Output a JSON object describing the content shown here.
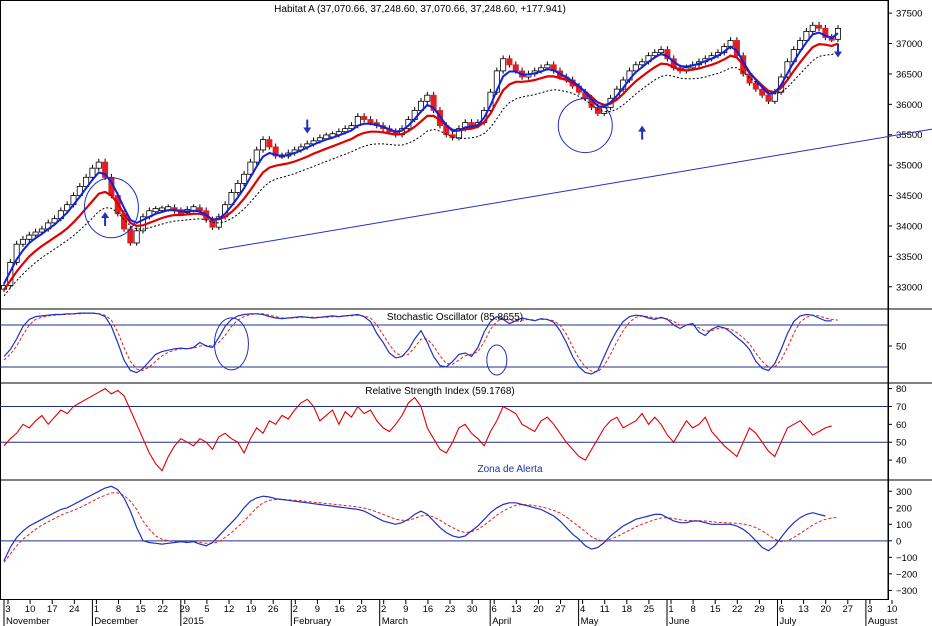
{
  "chart_data": [
    {
      "type": "candlestick",
      "title": "Habitat A (37,070.66, 37,248.60, 37,070.66, 37,248.60, +177.941)",
      "yticks": [
        33000,
        33500,
        34000,
        34500,
        35000,
        35500,
        36000,
        36500,
        37000,
        37500
      ],
      "ylim": [
        32700,
        37650
      ],
      "annotations": {
        "trendline": [
          [
            34,
            33610
          ],
          [
            210,
            36700
          ]
        ],
        "up_arrows": [
          16,
          101
        ],
        "down_arrows": [
          48,
          132
        ]
      },
      "close_series": [
        33020,
        33400,
        33700,
        33780,
        33850,
        33900,
        33950,
        34050,
        34120,
        34250,
        34350,
        34500,
        34650,
        34800,
        34950,
        35050,
        34800,
        34500,
        34200,
        33950,
        33720,
        33920,
        34150,
        34250,
        34270,
        34280,
        34300,
        34250,
        34220,
        34270,
        34300,
        34250,
        34100,
        33980,
        34150,
        34350,
        34550,
        34700,
        34850,
        35050,
        35250,
        35420,
        35300,
        35150,
        35150,
        35200,
        35250,
        35300,
        35350,
        35400,
        35450,
        35480,
        35500,
        35550,
        35600,
        35650,
        35800,
        35750,
        35700,
        35650,
        35600,
        35550,
        35500,
        35600,
        35750,
        35900,
        36050,
        36150,
        35900,
        35650,
        35500,
        35450,
        35600,
        35700,
        35650,
        35700,
        35900,
        36200,
        36550,
        36750,
        36650,
        36550,
        36450,
        36500,
        36550,
        36600,
        36650,
        36550,
        36450,
        36400,
        36300,
        36200,
        36100,
        35950,
        35850,
        35950,
        36100,
        36250,
        36400,
        36550,
        36650,
        36700,
        36800,
        36850,
        36900,
        36750,
        36600,
        36550,
        36600,
        36650,
        36700,
        36750,
        36800,
        36850,
        36950,
        37050,
        36800,
        36500,
        36350,
        36250,
        36150,
        36050,
        36200,
        36450,
        36700,
        36900,
        37050,
        37200,
        37300,
        37250,
        37100,
        37070,
        37248
      ],
      "ma_fast_series": [
        33050,
        33250,
        33450,
        33600,
        33720,
        33800,
        33870,
        33950,
        34020,
        34120,
        34220,
        34350,
        34480,
        34620,
        34760,
        34880,
        34850,
        34720,
        34520,
        34300,
        34100,
        34050,
        34100,
        34150,
        34200,
        34230,
        34260,
        34260,
        34240,
        34240,
        34250,
        34240,
        34180,
        34100,
        34120,
        34200,
        34330,
        34470,
        34620,
        34800,
        34980,
        35140,
        35200,
        35170,
        35150,
        35170,
        35200,
        35240,
        35290,
        35340,
        35380,
        35420,
        35450,
        35490,
        35530,
        35570,
        35650,
        35680,
        35680,
        35660,
        35630,
        35590,
        35550,
        35570,
        35650,
        35760,
        35880,
        35990,
        35940,
        35800,
        35660,
        35560,
        35570,
        35620,
        35630,
        35660,
        35780,
        35980,
        36230,
        36460,
        36540,
        36540,
        36490,
        36490,
        36510,
        36540,
        36580,
        36560,
        36500,
        36450,
        36380,
        36300,
        36200,
        36080,
        35970,
        35960,
        36030,
        36140,
        36270,
        36410,
        36530,
        36610,
        36700,
        36770,
        36830,
        36790,
        36700,
        36630,
        36620,
        36640,
        36670,
        36710,
        36750,
        36800,
        36870,
        36950,
        36880,
        36700,
        36530,
        36400,
        36280,
        36170,
        36190,
        36320,
        36510,
        36700,
        36870,
        37020,
        37150,
        37180,
        37130,
        37090,
        37170
      ],
      "ma_slow_series": [
        32950,
        33100,
        33250,
        33380,
        33500,
        33590,
        33670,
        33740,
        33810,
        33880,
        33960,
        34060,
        34170,
        34290,
        34410,
        34530,
        34560,
        34500,
        34370,
        34200,
        34050,
        34000,
        34010,
        34050,
        34090,
        34130,
        34160,
        34180,
        34180,
        34190,
        34200,
        34200,
        34170,
        34110,
        34110,
        34150,
        34230,
        34330,
        34450,
        34590,
        34740,
        34880,
        34960,
        34990,
        35010,
        35030,
        35060,
        35100,
        35140,
        35190,
        35230,
        35270,
        35310,
        35350,
        35390,
        35430,
        35490,
        35530,
        35550,
        35550,
        35540,
        35520,
        35500,
        35510,
        35560,
        35630,
        35720,
        35810,
        35810,
        35740,
        35650,
        35580,
        35570,
        35590,
        35600,
        35630,
        35710,
        35850,
        36040,
        36230,
        36330,
        36370,
        36370,
        36380,
        36400,
        36430,
        36460,
        36460,
        36430,
        36400,
        36350,
        36290,
        36210,
        36120,
        36030,
        35990,
        36010,
        36080,
        36170,
        36280,
        36380,
        36460,
        36540,
        36610,
        36670,
        36660,
        36610,
        36570,
        36560,
        36570,
        36590,
        36620,
        36650,
        36690,
        36740,
        36800,
        36770,
        36650,
        36520,
        36410,
        36310,
        36220,
        36200,
        36270,
        36400,
        36550,
        36690,
        36820,
        36940,
        36990,
        36980,
        36960,
        37000
      ],
      "ma_dashed_series": [
        32850,
        32980,
        33100,
        33210,
        33310,
        33400,
        33480,
        33550,
        33620,
        33690,
        33760,
        33840,
        33930,
        34030,
        34130,
        34240,
        34300,
        34290,
        34220,
        34110,
        34000,
        33950,
        33950,
        33970,
        34000,
        34030,
        34060,
        34080,
        34090,
        34100,
        34110,
        34120,
        34100,
        34060,
        34050,
        34070,
        34120,
        34190,
        34280,
        34390,
        34510,
        34630,
        34720,
        34770,
        34800,
        34830,
        34860,
        34900,
        34940,
        34980,
        35020,
        35060,
        35100,
        35140,
        35180,
        35220,
        35270,
        35310,
        35340,
        35350,
        35350,
        35340,
        35330,
        35330,
        35360,
        35410,
        35480,
        35560,
        35590,
        35560,
        35510,
        35460,
        35440,
        35440,
        35450,
        35470,
        35520,
        35620,
        35760,
        35920,
        36030,
        36090,
        36120,
        36140,
        36160,
        36190,
        36220,
        36240,
        36230,
        36210,
        36180,
        36130,
        36070,
        35990,
        35920,
        35880,
        35880,
        35920,
        35990,
        36080,
        36170,
        36250,
        36330,
        36400,
        36460,
        36480,
        36460,
        36430,
        36420,
        36420,
        36430,
        36450,
        36480,
        36510,
        36550,
        36600,
        36600,
        36530,
        36440,
        36360,
        36280,
        36200,
        36170,
        36200,
        36280,
        36390,
        36500,
        36610,
        36720,
        36790,
        36810,
        36820,
        36850
      ]
    },
    {
      "type": "line",
      "title": "Stochastic Oscillator (85.8655)",
      "yticks": [
        50
      ],
      "ylim": [
        0,
        100
      ],
      "hlines": [
        20,
        80
      ],
      "k_series": [
        35,
        45,
        60,
        78,
        88,
        92,
        93,
        94,
        95,
        95,
        96,
        96,
        97,
        97,
        97,
        96,
        92,
        78,
        55,
        30,
        15,
        12,
        18,
        28,
        38,
        42,
        44,
        46,
        47,
        46,
        48,
        55,
        50,
        48,
        62,
        78,
        88,
        93,
        95,
        96,
        96,
        95,
        92,
        90,
        89,
        90,
        91,
        92,
        91,
        90,
        91,
        92,
        93,
        92,
        93,
        94,
        95,
        92,
        85,
        68,
        55,
        40,
        33,
        35,
        45,
        60,
        72,
        55,
        35,
        22,
        20,
        28,
        38,
        40,
        35,
        48,
        70,
        85,
        92,
        88,
        82,
        86,
        90,
        88,
        86,
        89,
        88,
        84,
        72,
        55,
        35,
        20,
        12,
        10,
        15,
        35,
        55,
        72,
        85,
        92,
        94,
        93,
        90,
        88,
        91,
        88,
        80,
        75,
        80,
        82,
        70,
        65,
        74,
        78,
        76,
        70,
        62,
        55,
        45,
        28,
        18,
        15,
        25,
        45,
        68,
        85,
        93,
        95,
        94,
        90,
        86,
        85.9
      ],
      "d_series": [
        30,
        38,
        50,
        66,
        80,
        88,
        91,
        93,
        94,
        95,
        95,
        96,
        96,
        97,
        97,
        96,
        94,
        87,
        70,
        48,
        28,
        17,
        15,
        20,
        28,
        36,
        41,
        44,
        46,
        46,
        47,
        50,
        51,
        50,
        55,
        65,
        78,
        87,
        92,
        95,
        96,
        96,
        94,
        92,
        90,
        90,
        90,
        91,
        91,
        91,
        91,
        91,
        92,
        92,
        93,
        93,
        94,
        93,
        90,
        80,
        66,
        52,
        40,
        36,
        38,
        48,
        60,
        60,
        50,
        36,
        25,
        24,
        30,
        36,
        38,
        42,
        56,
        74,
        85,
        89,
        87,
        85,
        87,
        88,
        87,
        88,
        88,
        86,
        80,
        67,
        49,
        32,
        20,
        14,
        13,
        22,
        38,
        56,
        72,
        84,
        91,
        93,
        92,
        90,
        90,
        89,
        85,
        80,
        80,
        80,
        76,
        71,
        72,
        75,
        76,
        74,
        69,
        62,
        53,
        40,
        28,
        20,
        20,
        30,
        48,
        68,
        84,
        91,
        94,
        93,
        90,
        88,
        87
      ],
      "circles": [
        [
          36,
          53
        ],
        [
          78,
          30
        ]
      ]
    },
    {
      "type": "line",
      "title": "Relative Strength Index (59.1768)",
      "annotations": [
        "Zona de Alerta"
      ],
      "yticks": [
        40,
        50,
        60,
        70,
        80
      ],
      "ylim": [
        30,
        82
      ],
      "hlines": [
        50,
        70
      ],
      "series": [
        48,
        52,
        55,
        60,
        58,
        62,
        65,
        60,
        64,
        68,
        66,
        70,
        72,
        74,
        76,
        78,
        80,
        77,
        79,
        76,
        68,
        60,
        52,
        44,
        38,
        34,
        42,
        48,
        52,
        50,
        48,
        52,
        50,
        46,
        53,
        55,
        52,
        50,
        44,
        52,
        58,
        55,
        62,
        60,
        65,
        63,
        68,
        72,
        74,
        70,
        62,
        65,
        68,
        60,
        67,
        64,
        70,
        66,
        68,
        62,
        58,
        56,
        60,
        65,
        72,
        75,
        70,
        58,
        52,
        46,
        44,
        50,
        58,
        60,
        55,
        52,
        48,
        56,
        62,
        70,
        68,
        66,
        60,
        58,
        56,
        62,
        64,
        60,
        55,
        50,
        46,
        42,
        40,
        46,
        52,
        58,
        62,
        64,
        58,
        60,
        62,
        66,
        60,
        64,
        60,
        54,
        50,
        56,
        62,
        58,
        60,
        64,
        56,
        52,
        48,
        45,
        42,
        50,
        58,
        55,
        50,
        45,
        42,
        50,
        58,
        60,
        62,
        58,
        54,
        56,
        58,
        59.2
      ]
    },
    {
      "type": "line",
      "yticks": [
        300,
        200,
        100,
        0,
        -100,
        -200,
        -300
      ],
      "ylim": [
        -340,
        350
      ],
      "hlines": [
        0
      ],
      "macd_series": [
        -120,
        -40,
        20,
        60,
        90,
        110,
        130,
        150,
        170,
        190,
        200,
        220,
        240,
        260,
        280,
        300,
        320,
        330,
        310,
        260,
        180,
        80,
        0,
        -10,
        -15,
        -20,
        -15,
        -10,
        -5,
        -10,
        -5,
        -20,
        -30,
        -10,
        30,
        70,
        110,
        150,
        200,
        240,
        260,
        270,
        265,
        255,
        250,
        245,
        240,
        235,
        230,
        225,
        220,
        215,
        210,
        205,
        200,
        195,
        190,
        180,
        160,
        140,
        120,
        110,
        100,
        110,
        130,
        160,
        180,
        160,
        120,
        80,
        50,
        30,
        20,
        30,
        60,
        90,
        130,
        170,
        200,
        220,
        230,
        230,
        220,
        210,
        200,
        190,
        170,
        150,
        120,
        80,
        40,
        10,
        -30,
        -50,
        -40,
        -10,
        30,
        60,
        90,
        110,
        130,
        140,
        150,
        160,
        160,
        140,
        120,
        110,
        110,
        120,
        120,
        110,
        100,
        100,
        100,
        100,
        90,
        70,
        40,
        0,
        -40,
        -60,
        -30,
        20,
        70,
        110,
        140,
        160,
        170,
        160,
        150
      ],
      "signal_series": [
        -130,
        -80,
        -30,
        10,
        40,
        70,
        95,
        115,
        135,
        155,
        170,
        185,
        200,
        220,
        240,
        260,
        275,
        290,
        290,
        275,
        240,
        190,
        120,
        70,
        30,
        10,
        0,
        -5,
        -5,
        -5,
        -5,
        -10,
        -15,
        -15,
        -5,
        20,
        50,
        85,
        120,
        160,
        200,
        230,
        245,
        250,
        250,
        248,
        245,
        242,
        238,
        234,
        230,
        226,
        222,
        218,
        214,
        210,
        205,
        198,
        188,
        175,
        160,
        145,
        130,
        125,
        125,
        135,
        150,
        155,
        145,
        125,
        100,
        80,
        60,
        50,
        55,
        70,
        95,
        125,
        155,
        180,
        200,
        215,
        220,
        218,
        213,
        206,
        196,
        184,
        168,
        145,
        115,
        85,
        55,
        25,
        5,
        0,
        10,
        25,
        45,
        65,
        85,
        100,
        115,
        128,
        138,
        140,
        135,
        128,
        123,
        122,
        122,
        120,
        116,
        112,
        110,
        108,
        106,
        102,
        94,
        80,
        60,
        35,
        10,
        -5,
        0,
        20,
        45,
        70,
        95,
        115,
        130,
        138,
        142
      ]
    }
  ],
  "x_axis": {
    "ticks": [
      "3",
      "10",
      "17",
      "24",
      "1",
      "8",
      "15",
      "22",
      "29",
      "5",
      "12",
      "19",
      "26",
      "2",
      "9",
      "16",
      "23",
      "2",
      "9",
      "16",
      "23",
      "30",
      "6",
      "13",
      "20",
      "27",
      "4",
      "11",
      "18",
      "25",
      "1",
      "8",
      "15",
      "22",
      "29",
      "6",
      "13",
      "20",
      "27",
      "3",
      "10"
    ],
    "months": [
      {
        "label": "November",
        "tick": 0
      },
      {
        "label": "December",
        "tick": 4
      },
      {
        "label": "2015",
        "tick": 8
      },
      {
        "label": "February",
        "tick": 13
      },
      {
        "label": "March",
        "tick": 17
      },
      {
        "label": "April",
        "tick": 22
      },
      {
        "label": "May",
        "tick": 26
      },
      {
        "label": "June",
        "tick": 30
      },
      {
        "label": "July",
        "tick": 35
      },
      {
        "label": "August",
        "tick": 39
      }
    ]
  },
  "colors": {
    "price_up": "#ffffff",
    "price_down": "#e02020",
    "ma_fast": "#1020e0",
    "ma_slow": "#e00000",
    "ma_dashed": "#000000",
    "indicator_line": "#2030c0",
    "indicator_signal": "#e02020",
    "rsi": "#e00000",
    "levels": "#203080",
    "trendline": "#2030c0"
  }
}
